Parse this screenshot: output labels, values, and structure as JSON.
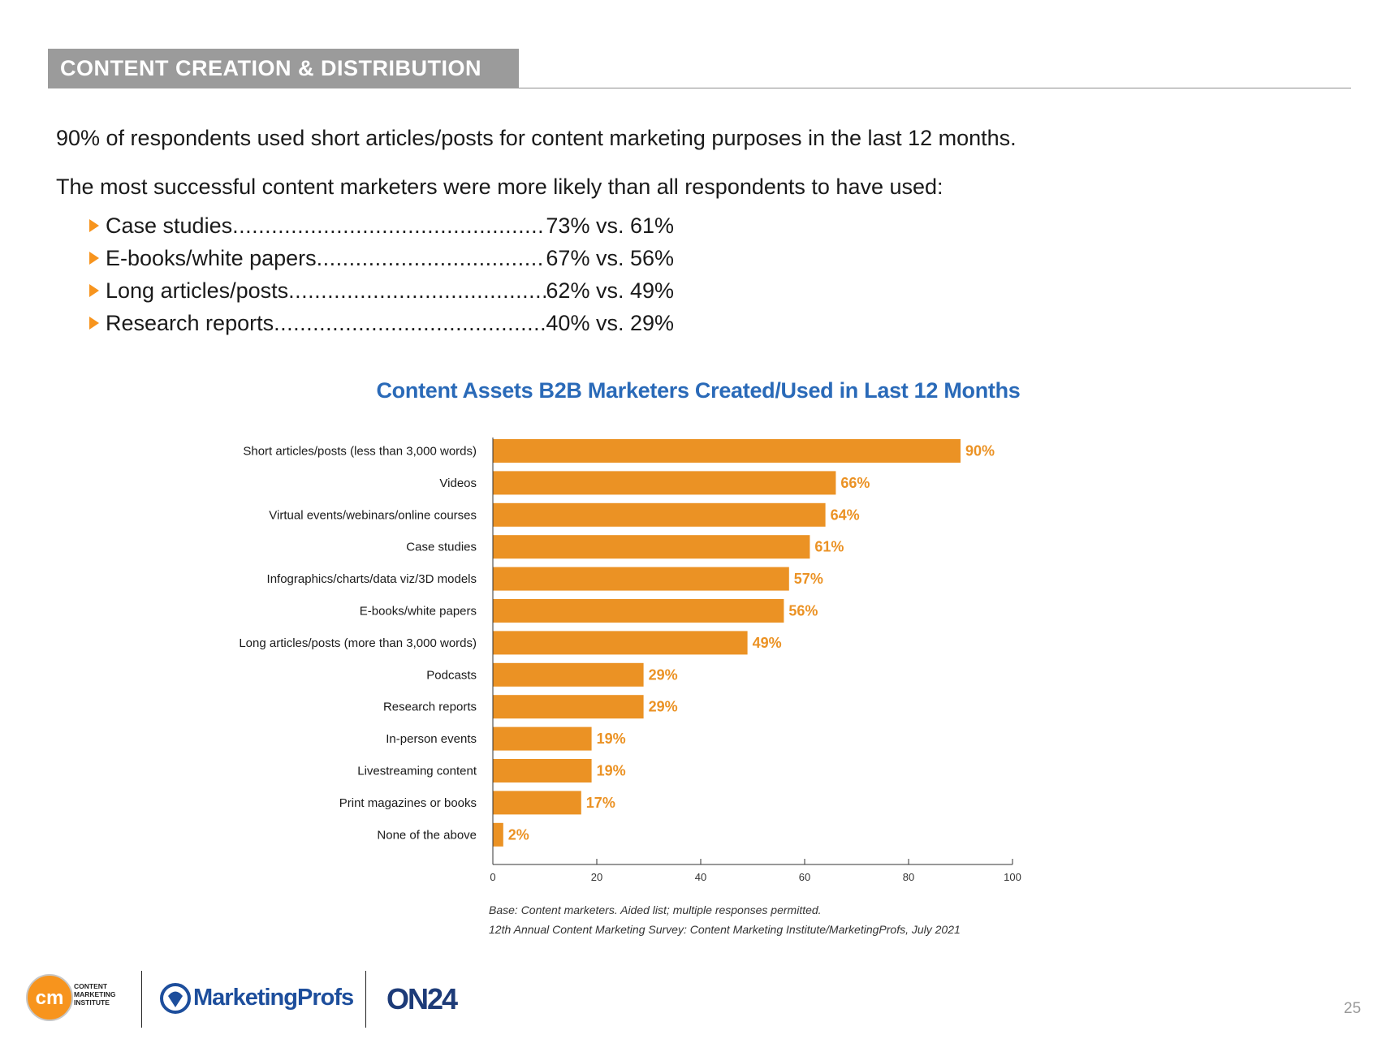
{
  "section_header": "CONTENT CREATION & DISTRIBUTION",
  "intro": {
    "line1": "90% of respondents used short articles/posts for content marketing purposes in the last 12 months.",
    "line2": "The most successful content marketers were more likely than all respondents to have used:"
  },
  "stats": [
    {
      "label": "Case studies",
      "value": "73% vs. 61%"
    },
    {
      "label": "E-books/white papers",
      "value": "67% vs. 56%"
    },
    {
      "label": "Long articles/posts",
      "value": "62% vs. 49%"
    },
    {
      "label": "Research reports",
      "value": "40% vs. 29%"
    }
  ],
  "chart_data": {
    "type": "bar",
    "orientation": "horizontal",
    "title": "Content Assets B2B Marketers Created/Used in Last 12 Months",
    "categories": [
      "Short articles/posts (less than 3,000 words)",
      "Videos",
      "Virtual events/webinars/online courses",
      "Case studies",
      "Infographics/charts/data viz/3D models",
      "E-books/white papers",
      "Long articles/posts (more than 3,000 words)",
      "Podcasts",
      "Research reports",
      "In-person events",
      "Livestreaming content",
      "Print magazines or books",
      "None of the above"
    ],
    "values": [
      90,
      66,
      64,
      61,
      57,
      56,
      49,
      29,
      29,
      19,
      19,
      17,
      2
    ],
    "value_labels": [
      "90%",
      "66%",
      "64%",
      "61%",
      "57%",
      "56%",
      "49%",
      "29%",
      "29%",
      "19%",
      "19%",
      "17%",
      "2%"
    ],
    "xlim": [
      0,
      100
    ],
    "xticks": [
      0,
      20,
      40,
      60,
      80,
      100
    ],
    "xlabel": "",
    "ylabel": "",
    "grid": false,
    "bar_color": "#eb9224",
    "label_color": "#eb9224",
    "title_color": "#2a6ab8"
  },
  "footnotes": {
    "base": "Base: Content marketers. Aided list; multiple responses permitted.",
    "source": "12th Annual Content Marketing Survey: Content Marketing Institute/MarketingProfs, July 2021"
  },
  "logos": {
    "cmi_initials": "cm",
    "cmi_line1": "CONTENT",
    "cmi_line2": "MARKETING",
    "cmi_line3": "INSTITUTE",
    "marketingprofs": "MarketingProfs",
    "on24": "ON24"
  },
  "page_number": "25"
}
